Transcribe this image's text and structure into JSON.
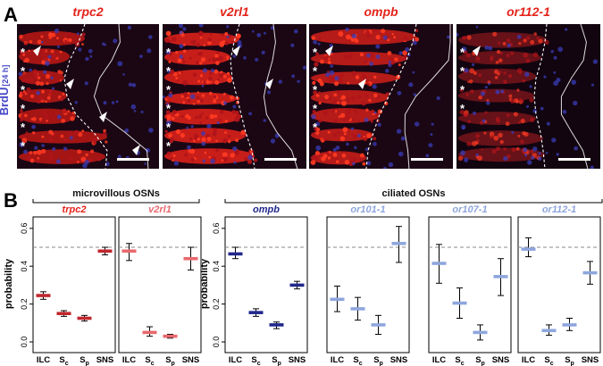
{
  "panel_a": {
    "letter": "A",
    "side_label": "BrdU",
    "side_label_sub": "[24 h]",
    "asterisk": "*",
    "images": [
      {
        "gene": "trpc2",
        "title_color": "#e5231b",
        "background": "#1b0714",
        "signal": "#d61b14",
        "nuclei": "#3a3cb8",
        "intensity": 0.7,
        "asterisks": 6,
        "arrowheads": 4
      },
      {
        "gene": "v2rl1",
        "title_color": "#e5231b",
        "background": "#1b0714",
        "signal": "#e2221a",
        "nuclei": "#3a3cb8",
        "intensity": 0.95,
        "asterisks": 6,
        "arrowheads": 2
      },
      {
        "gene": "ompb",
        "title_color": "#e5231b",
        "background": "#1b0714",
        "signal": "#d8201a",
        "nuclei": "#3a3cb8",
        "intensity": 0.85,
        "asterisks": 5,
        "arrowheads": 2
      },
      {
        "gene": "or112-1",
        "title_color": "#e5231b",
        "background": "#12050f",
        "signal": "#a81a20",
        "nuclei": "#3a3cb8",
        "intensity": 0.4,
        "asterisks": 4,
        "arrowheads": 1
      }
    ]
  },
  "panel_b": {
    "letter": "B",
    "group_titles": [
      "microvillous OSNs",
      "ciliated OSNs"
    ],
    "ylabel": "probability",
    "ytick_labels": [
      "0.0",
      "0.2",
      "0.4",
      "0.6"
    ],
    "x_labels": [
      {
        "base": "ILC",
        "sub": ""
      },
      {
        "base": "S",
        "sub": "c"
      },
      {
        "base": "S",
        "sub": "p"
      },
      {
        "base": "SNS",
        "sub": ""
      }
    ]
  },
  "chart_data": {
    "type": "scatter",
    "ylabel": "probability",
    "ylim": [
      0,
      0.65
    ],
    "reference_line": 0.5,
    "categories": [
      "ILC",
      "Sc",
      "Sp",
      "SNS"
    ],
    "panels": [
      {
        "gene": "trpc2",
        "group": "microvillous OSNs",
        "color": "#c0272d",
        "title_color": "#e5231b",
        "mean": [
          0.245,
          0.15,
          0.125,
          0.48
        ],
        "lower": [
          0.225,
          0.135,
          0.11,
          0.46
        ],
        "upper": [
          0.265,
          0.165,
          0.14,
          0.5
        ]
      },
      {
        "gene": "v2rl1",
        "group": "microvillous OSNs",
        "color": "#e8696e",
        "title_color": "#e8696e",
        "mean": [
          0.48,
          0.05,
          0.03,
          0.44
        ],
        "lower": [
          0.43,
          0.03,
          0.02,
          0.38
        ],
        "upper": [
          0.52,
          0.08,
          0.04,
          0.5
        ]
      },
      {
        "gene": "ompb",
        "group": "ciliated OSNs",
        "color": "#21288c",
        "title_color": "#21288c",
        "mean": [
          0.465,
          0.155,
          0.09,
          0.3
        ],
        "lower": [
          0.44,
          0.135,
          0.07,
          0.28
        ],
        "upper": [
          0.5,
          0.175,
          0.105,
          0.32
        ]
      },
      {
        "gene": "or101-1",
        "group": "ciliated OSNs",
        "color": "#8ea6dd",
        "title_color": "#8ea6dd",
        "mean": [
          0.225,
          0.175,
          0.09,
          0.52
        ],
        "lower": [
          0.16,
          0.115,
          0.04,
          0.42
        ],
        "upper": [
          0.295,
          0.235,
          0.14,
          0.61
        ]
      },
      {
        "gene": "or107-1",
        "group": "ciliated OSNs",
        "color": "#8ea6dd",
        "title_color": "#8ea6dd",
        "mean": [
          0.415,
          0.205,
          0.05,
          0.345
        ],
        "lower": [
          0.31,
          0.125,
          0.01,
          0.245
        ],
        "upper": [
          0.515,
          0.285,
          0.09,
          0.44
        ]
      },
      {
        "gene": "or112-1",
        "group": "ciliated OSNs",
        "color": "#8ea6dd",
        "title_color": "#8ea6dd",
        "mean": [
          0.49,
          0.06,
          0.09,
          0.365
        ],
        "lower": [
          0.45,
          0.035,
          0.06,
          0.305
        ],
        "upper": [
          0.55,
          0.09,
          0.125,
          0.425
        ]
      }
    ]
  }
}
